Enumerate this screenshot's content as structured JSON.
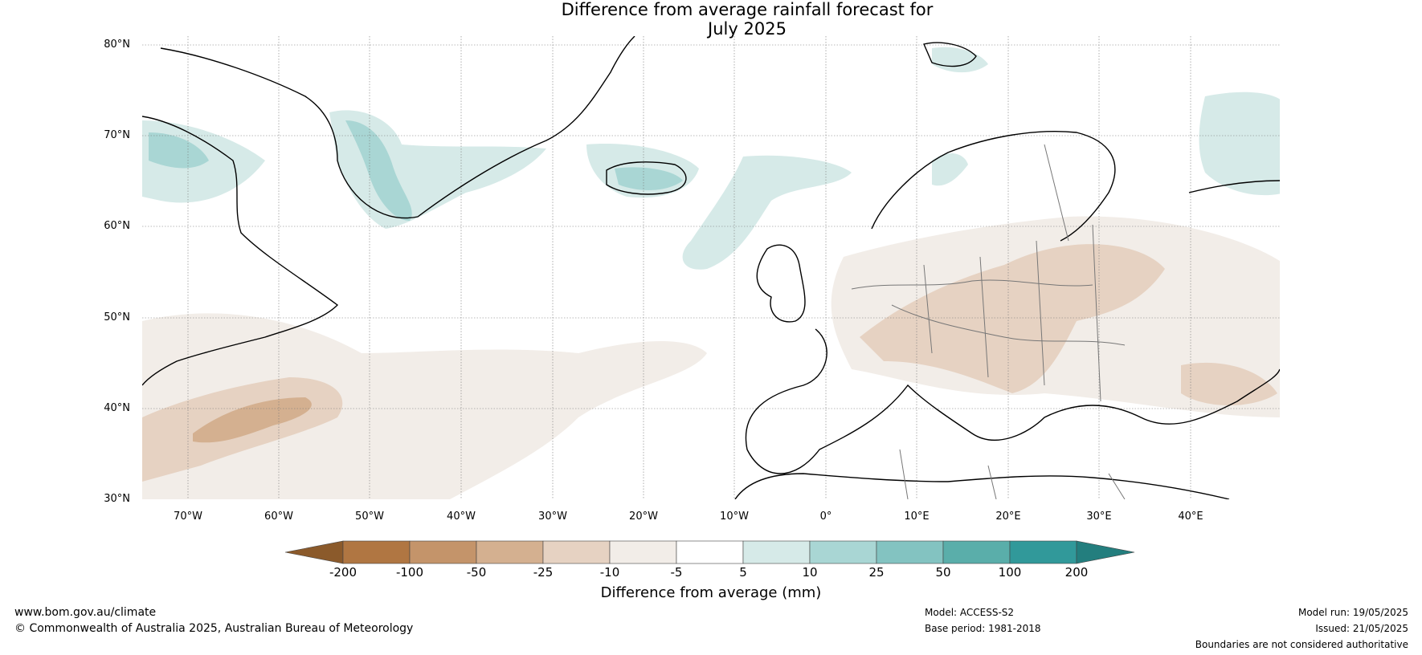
{
  "title_line1": "Difference from average rainfall forecast for",
  "title_line2": "July 2025",
  "lat_ticks": [
    "80°N",
    "70°N",
    "60°N",
    "50°N",
    "40°N",
    "30°N"
  ],
  "lon_ticks": [
    "70°W",
    "60°W",
    "50°W",
    "40°W",
    "30°W",
    "20°W",
    "10°W",
    "0°",
    "10°E",
    "20°E",
    "30°E",
    "40°E"
  ],
  "colorbar": {
    "title": "Difference from average (mm)",
    "tick_labels": [
      "-200",
      "-100",
      "-50",
      "-25",
      "-10",
      "-5",
      "5",
      "10",
      "25",
      "50",
      "100",
      "200"
    ],
    "colors": [
      "#8b5a2b",
      "#b07642",
      "#c4946a",
      "#d4b090",
      "#e6d2c2",
      "#f2ede8",
      "#ffffff",
      "#d6eae8",
      "#a9d6d4",
      "#83c3c1",
      "#5aaeaa",
      "#31999a",
      "#237e7e"
    ]
  },
  "footer": {
    "website": "www.bom.gov.au/climate",
    "copyright": "© Commonwealth of Australia 2025, Australian Bureau of Meteorology",
    "model": "Model: ACCESS-S2",
    "base_period": "Base period: 1981-2018",
    "model_run": "Model run: 19/05/2025",
    "issued": "Issued: 21/05/2025",
    "disclaimer": "Boundaries are not considered authoritative"
  }
}
